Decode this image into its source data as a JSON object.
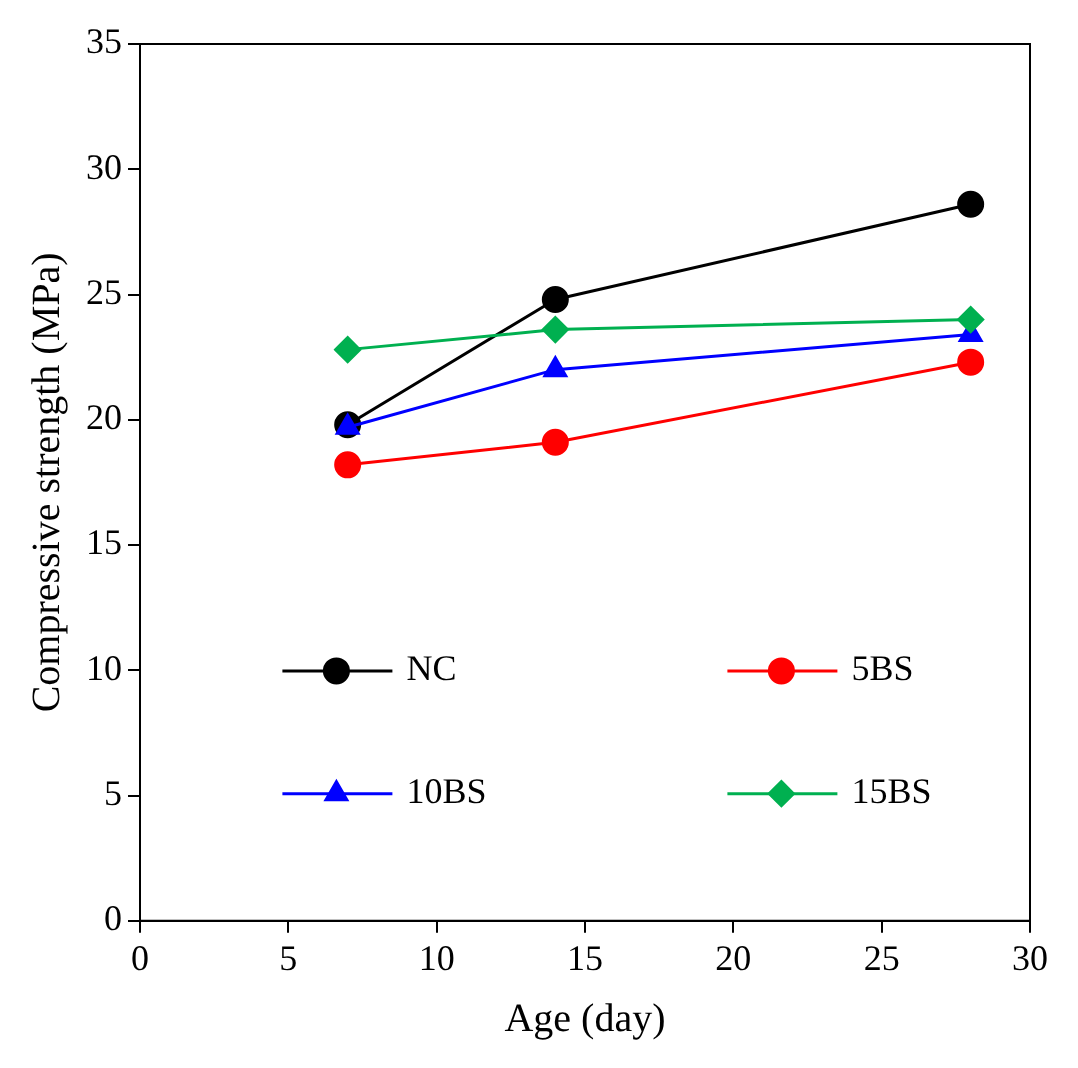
{
  "chart_data": {
    "type": "line",
    "xlabel": "Age (day)",
    "ylabel": "Compressive strength (MPa)",
    "x": [
      7,
      14,
      28
    ],
    "series": [
      {
        "name": "NC",
        "color": "#000000",
        "marker": "circle",
        "values": [
          19.8,
          24.8,
          28.6
        ]
      },
      {
        "name": "5BS",
        "color": "#ff0000",
        "marker": "circle",
        "values": [
          18.2,
          19.1,
          22.3
        ]
      },
      {
        "name": "10BS",
        "color": "#0000ff",
        "marker": "triangle",
        "values": [
          19.7,
          22.0,
          23.4
        ]
      },
      {
        "name": "15BS",
        "color": "#00b050",
        "marker": "diamond",
        "values": [
          22.8,
          23.6,
          24.0
        ]
      }
    ],
    "xlim": [
      0,
      30
    ],
    "xticks": [
      0,
      5,
      10,
      15,
      20,
      25,
      30
    ],
    "ylim": [
      0,
      35
    ],
    "yticks": [
      0,
      5,
      10,
      15,
      20,
      25,
      30,
      35
    ],
    "grid": false,
    "legend": "bottom"
  }
}
